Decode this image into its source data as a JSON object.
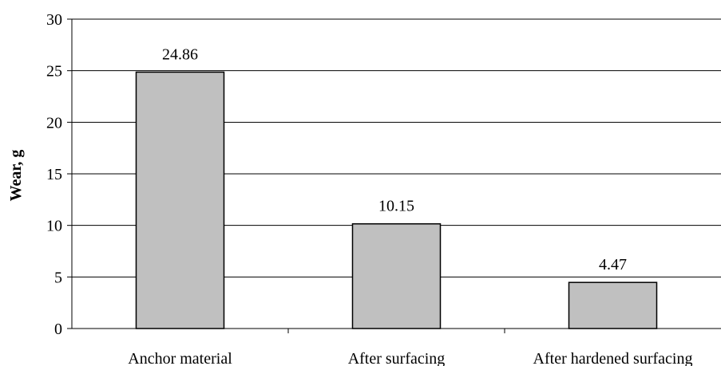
{
  "chart_data": {
    "type": "bar",
    "title": "",
    "xlabel": "",
    "ylabel": "Wear, g",
    "categories": [
      "Anchor material",
      "After surfacing",
      "After hardened surfacing"
    ],
    "values": [
      24.86,
      10.15,
      4.47
    ],
    "data_labels": [
      "24.86",
      "10.15",
      "4.47"
    ],
    "ylim": [
      0,
      30
    ],
    "yticks": [
      0,
      5,
      10,
      15,
      20,
      25,
      30
    ],
    "ytick_labels": [
      "0",
      "5",
      "10",
      "15",
      "20",
      "25",
      "30"
    ],
    "grid": "horizontal",
    "legend": "none",
    "colors": {
      "bar_fill": "#c0c0c0",
      "bar_stroke": "#000000",
      "grid": "#000000",
      "axis": "#000000",
      "background": "#ffffff"
    }
  }
}
